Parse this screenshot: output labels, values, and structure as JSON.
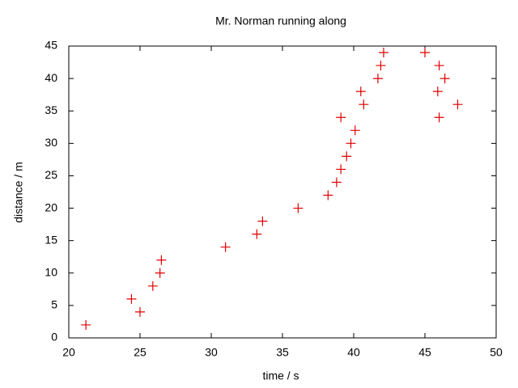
{
  "chart_data": {
    "type": "scatter",
    "title": "Mr. Norman running along",
    "x_label": "time / s",
    "y_label": "distance / m",
    "x": [
      21.2,
      24.4,
      25.0,
      25.9,
      26.4,
      26.5,
      31.0,
      33.2,
      33.6,
      36.1,
      38.2,
      38.8,
      39.1,
      39.5,
      39.8,
      40.1,
      39.1,
      40.5,
      40.7,
      41.7,
      41.9,
      42.1,
      45.0,
      46.0,
      46.4,
      45.9,
      47.3,
      46.0
    ],
    "y": [
      2,
      6,
      4,
      8,
      10,
      12,
      14,
      16,
      18,
      20,
      22,
      24,
      26,
      28,
      30,
      32,
      34,
      38,
      36,
      40,
      42,
      44,
      44,
      42,
      40,
      38,
      36,
      34
    ],
    "color": "#e00000",
    "xlim": [
      20,
      50
    ],
    "xticks": [
      20,
      25,
      30,
      35,
      40,
      45,
      50
    ],
    "ylim": [
      0,
      45
    ],
    "yticks": [
      0,
      5,
      10,
      15,
      20,
      25,
      30,
      35,
      40,
      45
    ],
    "grid": false
  }
}
